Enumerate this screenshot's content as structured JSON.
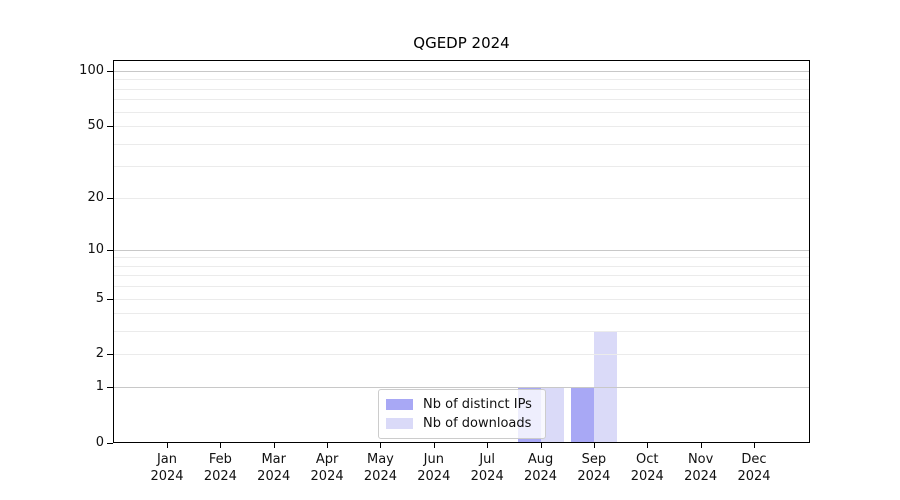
{
  "chart_data": {
    "type": "bar",
    "title": "QGEDP 2024",
    "categories": [
      "Jan",
      "Feb",
      "Mar",
      "Apr",
      "May",
      "Jun",
      "Jul",
      "Aug",
      "Sep",
      "Oct",
      "Nov",
      "Dec"
    ],
    "year_line": "2024",
    "series": [
      {
        "name": "Nb of distinct IPs",
        "color": "#a8a8f5",
        "values": [
          0,
          0,
          0,
          0,
          0,
          0,
          0,
          1,
          1,
          0,
          0,
          0
        ]
      },
      {
        "name": "Nb of downloads",
        "color": "#dadaf8",
        "values": [
          0,
          0,
          0,
          0,
          0,
          0,
          0,
          1,
          3,
          0,
          0,
          0
        ]
      }
    ],
    "xlabel": "",
    "ylabel": "",
    "y_axis": {
      "scale": "log1p",
      "ticks": [
        0,
        1,
        2,
        5,
        10,
        20,
        50,
        100
      ],
      "range_top": 100,
      "major_gridlines": [
        1,
        10,
        100
      ],
      "minor_gridlines": [
        2,
        3,
        4,
        5,
        6,
        7,
        8,
        9,
        20,
        30,
        40,
        50,
        60,
        70,
        80,
        90
      ]
    },
    "legend": {
      "position": "lower center",
      "entries": [
        "Nb of distinct IPs",
        "Nb of downloads"
      ]
    },
    "grid": true
  },
  "colors": {
    "axis": "#000000",
    "text": "#111111",
    "major_grid": "#c8c8c8",
    "minor_grid": "#ebebeb",
    "background": "#ffffff"
  }
}
